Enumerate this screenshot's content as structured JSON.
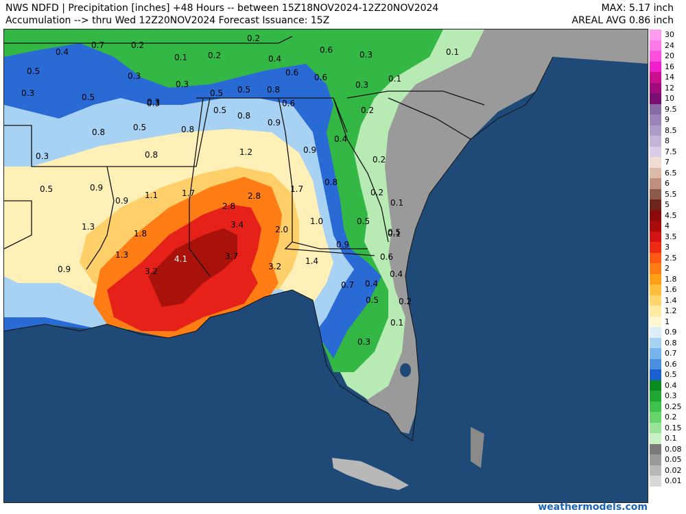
{
  "header": {
    "line1": "NWS NDFD | Precipitation [inches] +48 Hours -- between 15Z18NOV2024-12Z20NOV2024",
    "line2": "Accumulation --> thru Wed 12Z20NOV2024   Forecast Issuance: 15Z",
    "max": "MAX: 5.17 inch",
    "areal_avg": "AREAL AVG 0.86 inch"
  },
  "map_labels": [
    {
      "text": "0.4"
    },
    {
      "text": "0.7"
    },
    {
      "text": "0.2"
    },
    {
      "text": "0.2"
    },
    {
      "text": "0.5"
    },
    {
      "text": "0.1"
    },
    {
      "text": "0.2"
    },
    {
      "text": "0.3"
    },
    {
      "text": "0.4"
    },
    {
      "text": "0.6"
    },
    {
      "text": "0.3"
    },
    {
      "text": "0.1"
    },
    {
      "text": "0.3"
    },
    {
      "text": "0.3"
    },
    {
      "text": "0.6"
    },
    {
      "text": "0.6"
    },
    {
      "text": "0.1"
    },
    {
      "text": "0.3"
    },
    {
      "text": "0.5"
    },
    {
      "text": "0.3"
    },
    {
      "text": "0.5"
    },
    {
      "text": "0.5"
    },
    {
      "text": "0.8"
    },
    {
      "text": "0.3"
    },
    {
      "text": "0.6"
    },
    {
      "text": "0.5"
    },
    {
      "text": "0.8"
    },
    {
      "text": "0.2"
    },
    {
      "text": "0.8"
    },
    {
      "text": "0.5"
    },
    {
      "text": "0.8"
    },
    {
      "text": "0.9"
    },
    {
      "text": "0.4"
    },
    {
      "text": "0.3"
    },
    {
      "text": "0.8"
    },
    {
      "text": "1.2"
    },
    {
      "text": "0.9"
    },
    {
      "text": "0.2"
    },
    {
      "text": "0.5"
    },
    {
      "text": "0.9"
    },
    {
      "text": "1.1"
    },
    {
      "text": "1.7"
    },
    {
      "text": "0.8"
    },
    {
      "text": "0.2"
    },
    {
      "text": "1.7"
    },
    {
      "text": "2.8"
    },
    {
      "text": "0.1"
    },
    {
      "text": "0.9"
    },
    {
      "text": "2.8"
    },
    {
      "text": "0.5"
    },
    {
      "text": "1.3"
    },
    {
      "text": "3.4"
    },
    {
      "text": "1.0"
    },
    {
      "text": "0.5"
    },
    {
      "text": "0.1"
    },
    {
      "text": "1.8"
    },
    {
      "text": "2.0"
    },
    {
      "text": "0.9"
    },
    {
      "text": "1.3"
    },
    {
      "text": "0.6"
    },
    {
      "text": "4.1"
    },
    {
      "text": "3.7"
    },
    {
      "text": "0.9"
    },
    {
      "text": "3.2"
    },
    {
      "text": "3.2"
    },
    {
      "text": "1.4"
    },
    {
      "text": "0.4"
    },
    {
      "text": "0.4"
    },
    {
      "text": "0.7"
    },
    {
      "text": "0.5"
    },
    {
      "text": "0.2"
    },
    {
      "text": "0.1"
    },
    {
      "text": "0.3"
    }
  ],
  "legend": [
    {
      "label": "30",
      "color": "#ff9cf0"
    },
    {
      "label": "24",
      "color": "#ff7ae6"
    },
    {
      "label": "20",
      "color": "#ff4fdc"
    },
    {
      "label": "16",
      "color": "#f01fcc"
    },
    {
      "label": "14",
      "color": "#c8108f"
    },
    {
      "label": "12",
      "color": "#a00a7a"
    },
    {
      "label": "10",
      "color": "#7a0f73"
    },
    {
      "label": "9.5",
      "color": "#8a6aa6"
    },
    {
      "label": "9",
      "color": "#9a84b8"
    },
    {
      "label": "8.5",
      "color": "#ad9cc8"
    },
    {
      "label": "8",
      "color": "#c2b5d8"
    },
    {
      "label": "7.5",
      "color": "#d7cde6"
    },
    {
      "label": "7",
      "color": "#f0dcd2"
    },
    {
      "label": "6.5",
      "color": "#dcb9a8"
    },
    {
      "label": "6",
      "color": "#bf9080"
    },
    {
      "label": "5.5",
      "color": "#8c5a48"
    },
    {
      "label": "5",
      "color": "#6e2418"
    },
    {
      "label": "4.5",
      "color": "#8c0a0a"
    },
    {
      "label": "4",
      "color": "#aa0a0a"
    },
    {
      "label": "3.5",
      "color": "#d21414"
    },
    {
      "label": "3",
      "color": "#ee2a14"
    },
    {
      "label": "2.5",
      "color": "#ff5a14"
    },
    {
      "label": "2",
      "color": "#ff7d14"
    },
    {
      "label": "1.8",
      "color": "#ffa014"
    },
    {
      "label": "1.6",
      "color": "#ffbe3c"
    },
    {
      "label": "1.4",
      "color": "#ffd66e"
    },
    {
      "label": "1.2",
      "color": "#ffeca0"
    },
    {
      "label": "1",
      "color": "#fff8d2"
    },
    {
      "label": "0.9",
      "color": "#dceefa"
    },
    {
      "label": "0.8",
      "color": "#a8d2f4"
    },
    {
      "label": "0.7",
      "color": "#78b4ec"
    },
    {
      "label": "0.6",
      "color": "#4a8fe0"
    },
    {
      "label": "0.5",
      "color": "#1c5fd0"
    },
    {
      "label": "0.4",
      "color": "#0a8a1e"
    },
    {
      "label": "0.3",
      "color": "#1ea832"
    },
    {
      "label": "0.25",
      "color": "#3cc24a"
    },
    {
      "label": "0.2",
      "color": "#6ad46c"
    },
    {
      "label": "0.15",
      "color": "#9ae49a"
    },
    {
      "label": "0.1",
      "color": "#c8f2c4"
    },
    {
      "label": "0.08",
      "color": "#7a7a7a"
    },
    {
      "label": "0.05",
      "color": "#9a9a9a"
    },
    {
      "label": "0.02",
      "color": "#b8b8b8"
    },
    {
      "label": "0.01",
      "color": "#d8d8d8"
    }
  ],
  "credit": "weathermodels.com"
}
